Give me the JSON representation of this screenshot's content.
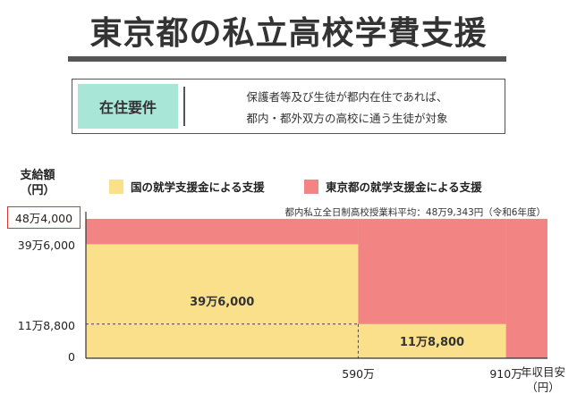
{
  "header": {
    "title": "東京都の私立高校学費支援"
  },
  "requirements": {
    "tag": "在住要件",
    "line1": "保護者等及び生徒が都内在住であれば、",
    "line2": "都内・都外双方の高校に通う生徒が対象"
  },
  "chart_data": {
    "type": "area",
    "ylabel_line1": "支給額",
    "ylabel_line2": "（円）",
    "xlabel_line1": "年収目安",
    "xlabel_line2": "（円）",
    "legend": [
      {
        "name": "国の就学支援金による支援",
        "color": "#fbe08c"
      },
      {
        "name": "東京都の就学支援金による支援",
        "color": "#f28484"
      }
    ],
    "note": "都内私立全日制高校授業料平均：48万9,343円（令和6年度）",
    "yticks": [
      {
        "label": "48万4,000",
        "value": 484000,
        "highlight": true
      },
      {
        "label": "39万6,000",
        "value": 396000,
        "highlight": false
      },
      {
        "label": "11万8,800",
        "value": 118800,
        "highlight": false
      },
      {
        "label": "0",
        "value": 0,
        "highlight": false
      }
    ],
    "xticks": [
      {
        "label": "590万",
        "value": 590
      },
      {
        "label": "910万",
        "value": 910
      }
    ],
    "segments": [
      {
        "x_from": 0,
        "x_to": 590,
        "national": 396000,
        "total": 484000,
        "label": "39万6,000"
      },
      {
        "x_from": 590,
        "x_to": 910,
        "national": 118800,
        "total": 484000,
        "label": "11万8,800"
      },
      {
        "x_from": 910,
        "x_to": 1000,
        "national": 0,
        "total": 484000,
        "label": ""
      }
    ],
    "ylim": [
      0,
      484000
    ],
    "xlim": [
      0,
      1000
    ]
  }
}
